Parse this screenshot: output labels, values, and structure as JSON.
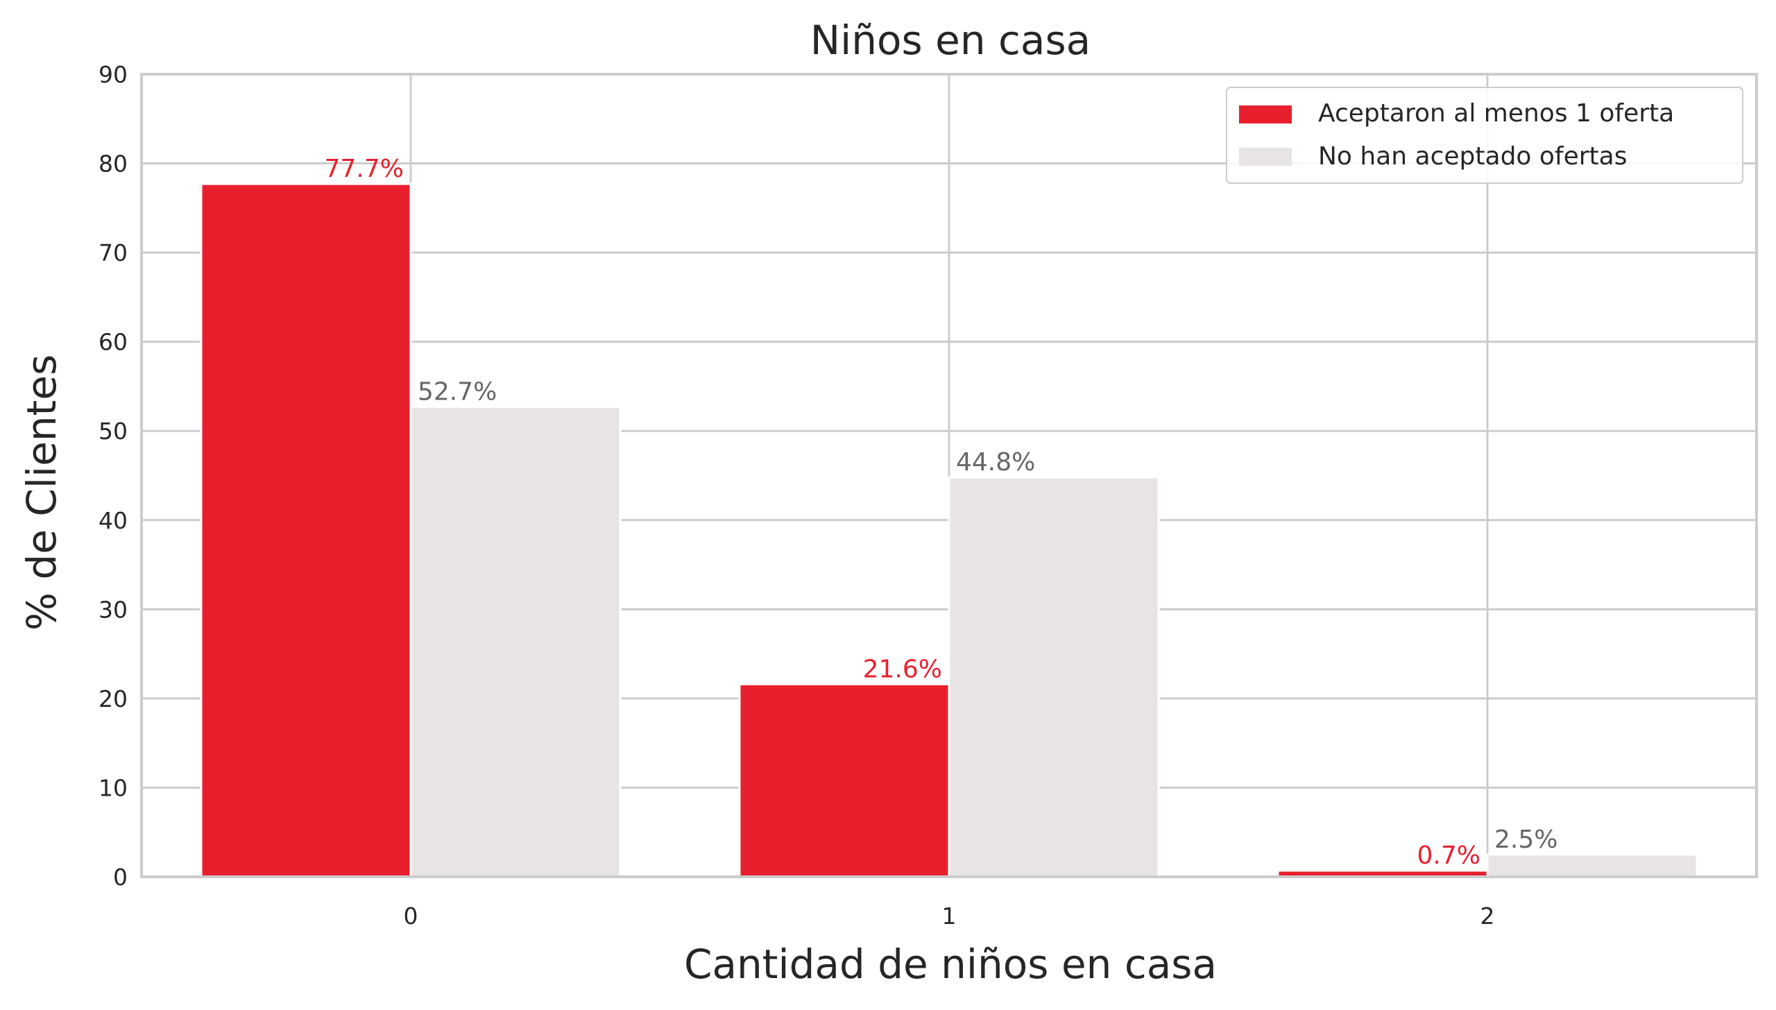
{
  "chart_data": {
    "type": "bar",
    "title": "Niños en casa",
    "xlabel": "Cantidad de niños en casa",
    "ylabel": "% de Clientes",
    "categories": [
      "0",
      "1",
      "2"
    ],
    "ylim": [
      0,
      90
    ],
    "yticks": [
      0,
      10,
      20,
      30,
      40,
      50,
      60,
      70,
      80,
      90
    ],
    "grid": true,
    "legend_position": "top-right",
    "series": [
      {
        "name": "Aceptaron al menos 1 oferta",
        "values": [
          77.7,
          21.6,
          0.7
        ],
        "labels": [
          "77.7%",
          "21.6%",
          "0.7%"
        ],
        "color": "#e8202e",
        "label_color": "#e8202e"
      },
      {
        "name": "No han aceptado ofertas",
        "values": [
          52.7,
          44.8,
          2.5
        ],
        "labels": [
          "52.7%",
          "44.8%",
          "2.5%"
        ],
        "color": "#e8e4e4",
        "label_color": "#666666"
      }
    ]
  },
  "colors": {
    "grid": "#cccccc",
    "background": "#ffffff",
    "text": "#262626"
  }
}
